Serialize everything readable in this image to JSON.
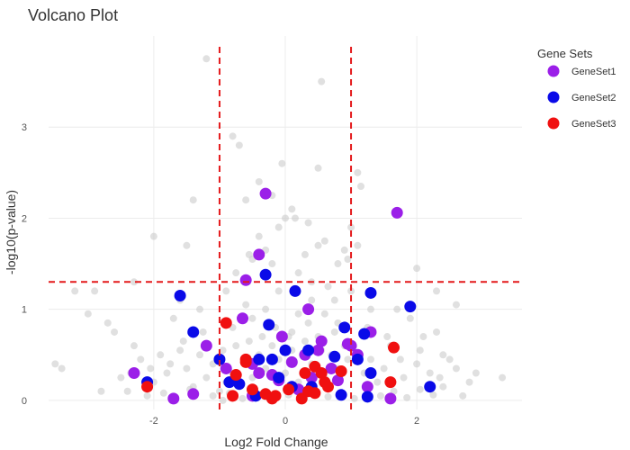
{
  "chart_data": {
    "type": "scatter",
    "title": "Volcano Plot",
    "xlabel": "Log2 Fold Change",
    "ylabel": "-log10(p-value)",
    "xlim": [
      -3.6,
      3.6
    ],
    "ylim": [
      -0.1,
      4.0
    ],
    "xticks": [
      -2,
      0,
      2
    ],
    "yticks": [
      0,
      1,
      2,
      3
    ],
    "grid": true,
    "thresholds": {
      "fold_change": [
        -1,
        1
      ],
      "neglog10p": 1.3,
      "color": "#e41a1c"
    },
    "legend": {
      "title": "Gene Sets",
      "position": "top-right",
      "entries": [
        "GeneSet1",
        "GeneSet2",
        "GeneSet3"
      ]
    },
    "background": {
      "name": "",
      "color": "#cccccc",
      "points": [
        [
          -1.0,
          0.1
        ],
        [
          -0.9,
          0.2
        ],
        [
          -0.8,
          0.3
        ],
        [
          -0.7,
          0.15
        ],
        [
          -0.6,
          0.4
        ],
        [
          -0.5,
          0.25
        ],
        [
          -0.4,
          0.5
        ],
        [
          -0.3,
          0.35
        ],
        [
          -0.2,
          0.6
        ],
        [
          -0.1,
          0.45
        ],
        [
          0.0,
          0.3
        ],
        [
          0.1,
          0.55
        ],
        [
          0.2,
          0.2
        ],
        [
          0.3,
          0.65
        ],
        [
          0.4,
          0.4
        ],
        [
          0.5,
          0.7
        ],
        [
          0.6,
          0.25
        ],
        [
          0.7,
          0.5
        ],
        [
          0.8,
          0.35
        ],
        [
          0.9,
          0.6
        ],
        [
          -1.1,
          0.4
        ],
        [
          -1.2,
          0.25
        ],
        [
          -1.3,
          0.5
        ],
        [
          -1.4,
          0.15
        ],
        [
          -1.5,
          0.35
        ],
        [
          -1.6,
          0.55
        ],
        [
          -1.8,
          0.3
        ],
        [
          -2.0,
          0.2
        ],
        [
          -2.2,
          0.45
        ],
        [
          -2.4,
          0.1
        ],
        [
          1.1,
          0.5
        ],
        [
          1.2,
          0.3
        ],
        [
          1.3,
          0.45
        ],
        [
          1.4,
          0.2
        ],
        [
          1.5,
          0.35
        ],
        [
          1.6,
          0.6
        ],
        [
          1.8,
          0.25
        ],
        [
          2.0,
          0.4
        ],
        [
          2.2,
          0.3
        ],
        [
          2.4,
          0.15
        ],
        [
          -0.5,
          0.9
        ],
        [
          -0.3,
          1.0
        ],
        [
          0.2,
          0.95
        ],
        [
          0.4,
          1.1
        ],
        [
          -0.8,
          0.8
        ],
        [
          0.8,
          0.85
        ],
        [
          -0.1,
          1.2
        ],
        [
          0.1,
          0.75
        ],
        [
          -0.6,
          1.05
        ],
        [
          0.6,
          0.95
        ],
        [
          -0.2,
          1.5
        ],
        [
          0.3,
          1.6
        ],
        [
          -0.4,
          1.8
        ],
        [
          0.5,
          1.7
        ],
        [
          0.0,
          2.0
        ],
        [
          -0.6,
          2.2
        ],
        [
          0.2,
          1.4
        ],
        [
          -0.1,
          1.9
        ],
        [
          0.4,
          1.3
        ],
        [
          -0.3,
          1.65
        ],
        [
          -2.0,
          1.8
        ],
        [
          -1.5,
          1.7
        ],
        [
          -1.4,
          2.2
        ],
        [
          -0.8,
          2.9
        ],
        [
          -0.7,
          2.8
        ],
        [
          0.5,
          2.55
        ],
        [
          0.55,
          3.5
        ],
        [
          -1.2,
          3.75
        ],
        [
          1.1,
          2.5
        ],
        [
          1.15,
          2.35
        ],
        [
          -0.4,
          2.4
        ],
        [
          0.35,
          1.95
        ],
        [
          -0.2,
          2.25
        ],
        [
          0.1,
          2.1
        ],
        [
          -0.05,
          2.6
        ],
        [
          0.15,
          2.0
        ],
        [
          -0.5,
          1.55
        ],
        [
          0.6,
          1.75
        ],
        [
          0.8,
          1.5
        ],
        [
          0.9,
          1.65
        ],
        [
          -3.5,
          0.4
        ],
        [
          -3.4,
          0.35
        ],
        [
          -3.0,
          0.95
        ],
        [
          -2.9,
          1.2
        ],
        [
          -2.8,
          0.1
        ],
        [
          -2.7,
          0.85
        ],
        [
          -2.5,
          0.25
        ],
        [
          -2.3,
          0.6
        ],
        [
          -2.1,
          0.05
        ],
        [
          -1.9,
          0.5
        ],
        [
          3.3,
          0.25
        ],
        [
          2.8,
          0.2
        ],
        [
          2.7,
          0.05
        ],
        [
          2.6,
          0.35
        ],
        [
          2.5,
          0.45
        ],
        [
          2.4,
          0.5
        ],
        [
          2.3,
          0.75
        ],
        [
          2.1,
          0.7
        ],
        [
          1.9,
          0.9
        ],
        [
          1.7,
          1.0
        ],
        [
          -1.7,
          0.9
        ],
        [
          -1.6,
          1.1
        ],
        [
          -1.3,
          1.0
        ],
        [
          -0.9,
          1.2
        ],
        [
          -0.75,
          1.4
        ],
        [
          -0.55,
          1.6
        ],
        [
          0.65,
          1.25
        ],
        [
          0.75,
          1.1
        ],
        [
          1.0,
          1.2
        ],
        [
          1.3,
          1.0
        ],
        [
          -1.1,
          0.05
        ],
        [
          -0.95,
          0.0
        ],
        [
          -0.85,
          0.08
        ],
        [
          -0.65,
          0.02
        ],
        [
          -0.45,
          0.07
        ],
        [
          -0.25,
          0.03
        ],
        [
          0.05,
          0.06
        ],
        [
          0.25,
          0.01
        ],
        [
          0.45,
          0.09
        ],
        [
          0.65,
          0.04
        ],
        [
          0.85,
          0.07
        ],
        [
          1.05,
          0.02
        ],
        [
          1.25,
          0.08
        ],
        [
          1.45,
          0.05
        ],
        [
          1.65,
          0.1
        ],
        [
          1.85,
          0.03
        ],
        [
          2.05,
          0.12
        ],
        [
          2.25,
          0.06
        ],
        [
          -1.45,
          0.12
        ],
        [
          -1.85,
          0.08
        ],
        [
          -0.15,
          0.8
        ],
        [
          0.05,
          0.7
        ],
        [
          0.35,
          0.85
        ],
        [
          -0.35,
          0.7
        ],
        [
          0.55,
          0.55
        ],
        [
          -0.55,
          0.65
        ],
        [
          0.75,
          0.75
        ],
        [
          -0.75,
          0.6
        ],
        [
          0.95,
          0.45
        ],
        [
          -0.95,
          0.55
        ],
        [
          -1.25,
          0.75
        ],
        [
          1.25,
          0.8
        ],
        [
          -1.55,
          0.65
        ],
        [
          1.55,
          0.7
        ],
        [
          -1.75,
          0.4
        ],
        [
          1.75,
          0.45
        ],
        [
          -2.05,
          0.35
        ],
        [
          2.05,
          0.55
        ],
        [
          -2.35,
          0.3
        ],
        [
          2.35,
          0.25
        ],
        [
          2.6,
          1.05
        ],
        [
          2.0,
          1.45
        ],
        [
          2.3,
          1.2
        ],
        [
          -2.3,
          1.3
        ],
        [
          -3.2,
          1.2
        ],
        [
          -2.6,
          0.75
        ],
        [
          2.9,
          0.3
        ],
        [
          1.1,
          1.7
        ],
        [
          1.0,
          1.9
        ],
        [
          0.95,
          1.55
        ]
      ]
    },
    "series": [
      {
        "name": "GeneSet1",
        "color": "#9b1fe8",
        "points": [
          [
            -0.3,
            2.27
          ],
          [
            1.7,
            2.06
          ],
          [
            -0.4,
            1.6
          ],
          [
            -0.6,
            1.32
          ],
          [
            0.35,
            1.0
          ],
          [
            -0.65,
            0.9
          ],
          [
            0.55,
            0.65
          ],
          [
            0.95,
            0.62
          ],
          [
            1.3,
            0.75
          ],
          [
            -1.2,
            0.6
          ],
          [
            -0.5,
            0.4
          ],
          [
            -0.4,
            0.3
          ],
          [
            -0.2,
            0.28
          ],
          [
            0.1,
            0.42
          ],
          [
            0.3,
            0.5
          ],
          [
            0.5,
            0.55
          ],
          [
            0.7,
            0.35
          ],
          [
            1.0,
            0.6
          ],
          [
            1.1,
            0.5
          ],
          [
            -2.3,
            0.3
          ],
          [
            -1.7,
            0.02
          ],
          [
            -1.4,
            0.07
          ],
          [
            -0.5,
            0.05
          ],
          [
            0.2,
            0.12
          ],
          [
            1.6,
            0.02
          ],
          [
            -0.9,
            0.35
          ],
          [
            -0.1,
            0.22
          ],
          [
            0.4,
            0.25
          ],
          [
            0.8,
            0.22
          ],
          [
            1.25,
            0.15
          ],
          [
            -0.05,
            0.7
          ]
        ]
      },
      {
        "name": "GeneSet2",
        "color": "#0a0ae8",
        "points": [
          [
            -1.6,
            1.15
          ],
          [
            -0.3,
            1.38
          ],
          [
            0.15,
            1.2
          ],
          [
            1.3,
            1.18
          ],
          [
            1.9,
            1.03
          ],
          [
            -1.4,
            0.75
          ],
          [
            -0.25,
            0.83
          ],
          [
            0.9,
            0.8
          ],
          [
            1.2,
            0.73
          ],
          [
            -1.0,
            0.45
          ],
          [
            -0.4,
            0.45
          ],
          [
            0.0,
            0.55
          ],
          [
            0.35,
            0.55
          ],
          [
            1.1,
            0.45
          ],
          [
            -0.2,
            0.45
          ],
          [
            0.75,
            0.48
          ],
          [
            -2.1,
            0.2
          ],
          [
            -0.7,
            0.18
          ],
          [
            -0.1,
            0.25
          ],
          [
            0.4,
            0.15
          ],
          [
            1.3,
            0.3
          ],
          [
            2.2,
            0.15
          ],
          [
            -0.45,
            0.05
          ],
          [
            0.1,
            0.15
          ],
          [
            0.85,
            0.06
          ],
          [
            1.25,
            0.04
          ],
          [
            -0.85,
            0.2
          ]
        ]
      },
      {
        "name": "GeneSet3",
        "color": "#f01010",
        "points": [
          [
            -0.9,
            0.85
          ],
          [
            1.65,
            0.58
          ],
          [
            -0.6,
            0.45
          ],
          [
            -0.6,
            0.42
          ],
          [
            -0.75,
            0.28
          ],
          [
            0.45,
            0.37
          ],
          [
            0.3,
            0.3
          ],
          [
            0.55,
            0.3
          ],
          [
            0.85,
            0.32
          ],
          [
            0.6,
            0.2
          ],
          [
            -2.1,
            0.15
          ],
          [
            -0.8,
            0.05
          ],
          [
            -0.5,
            0.12
          ],
          [
            -0.3,
            0.07
          ],
          [
            -0.2,
            0.02
          ],
          [
            0.05,
            0.12
          ],
          [
            0.25,
            0.02
          ],
          [
            0.45,
            0.08
          ],
          [
            0.65,
            0.15
          ],
          [
            1.6,
            0.2
          ],
          [
            -0.15,
            0.05
          ],
          [
            0.35,
            0.1
          ]
        ]
      }
    ]
  }
}
